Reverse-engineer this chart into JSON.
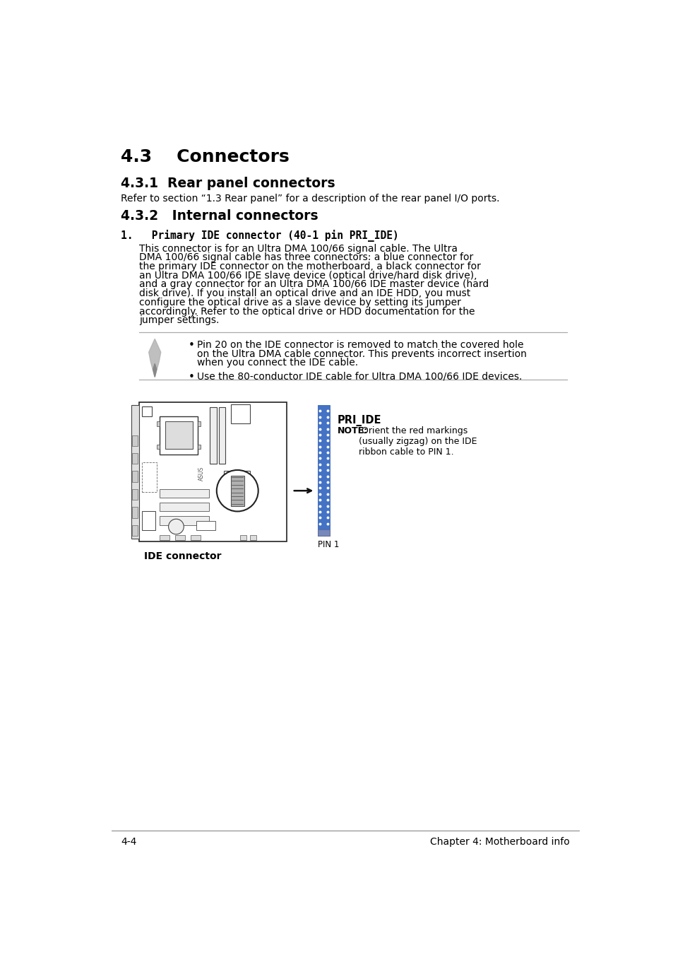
{
  "bg_color": "#ffffff",
  "title_43": "4.3    Connectors",
  "title_431": "4.3.1  Rear panel connectors",
  "body_431": "Refer to section “1.3 Rear panel” for a description of the rear panel I/O ports.",
  "title_432": "4.3.2   Internal connectors",
  "item1_title": "1.   Primary IDE connector (40-1 pin PRI_IDE)",
  "item1_body_lines": [
    "This connector is for an Ultra DMA 100/66 signal cable. The Ultra",
    "DMA 100/66 signal cable has three connectors: a blue connector for",
    "the primary IDE connector on the motherboard, a black connector for",
    "an Ultra DMA 100/66 IDE slave device (optical drive/hard disk drive),",
    "and a gray connector for an Ultra DMA 100/66 IDE master device (hard",
    "disk drive). If you install an optical drive and an IDE HDD, you must",
    "configure the optical drive as a slave device by setting its jumper",
    "accordingly. Refer to the optical drive or HDD documentation for the",
    "jumper settings."
  ],
  "note_bullet1_lines": [
    "Pin 20 on the IDE connector is removed to match the covered hole",
    "on the Ultra DMA cable connector. This prevents incorrect insertion",
    "when you connect the IDE cable."
  ],
  "note_bullet2": "Use the 80-conductor IDE cable for Ultra DMA 100/66 IDE devices.",
  "ide_label": "IDE connector",
  "pri_ide_label": "PRI_IDE",
  "pri_ide_note_bold": "NOTE:",
  "pri_ide_note_rest": " Orient the red markings\n(usually zigzag) on the IDE\nribbon cable to PIN 1.",
  "pin1_label": "PIN 1",
  "footer_left": "4-4",
  "footer_right": "Chapter 4: Motherboard info",
  "connector_blue": "#4472C4",
  "connector_blue_dark": "#2255aa",
  "line_color": "#aaaaaa",
  "text_color": "#000000"
}
